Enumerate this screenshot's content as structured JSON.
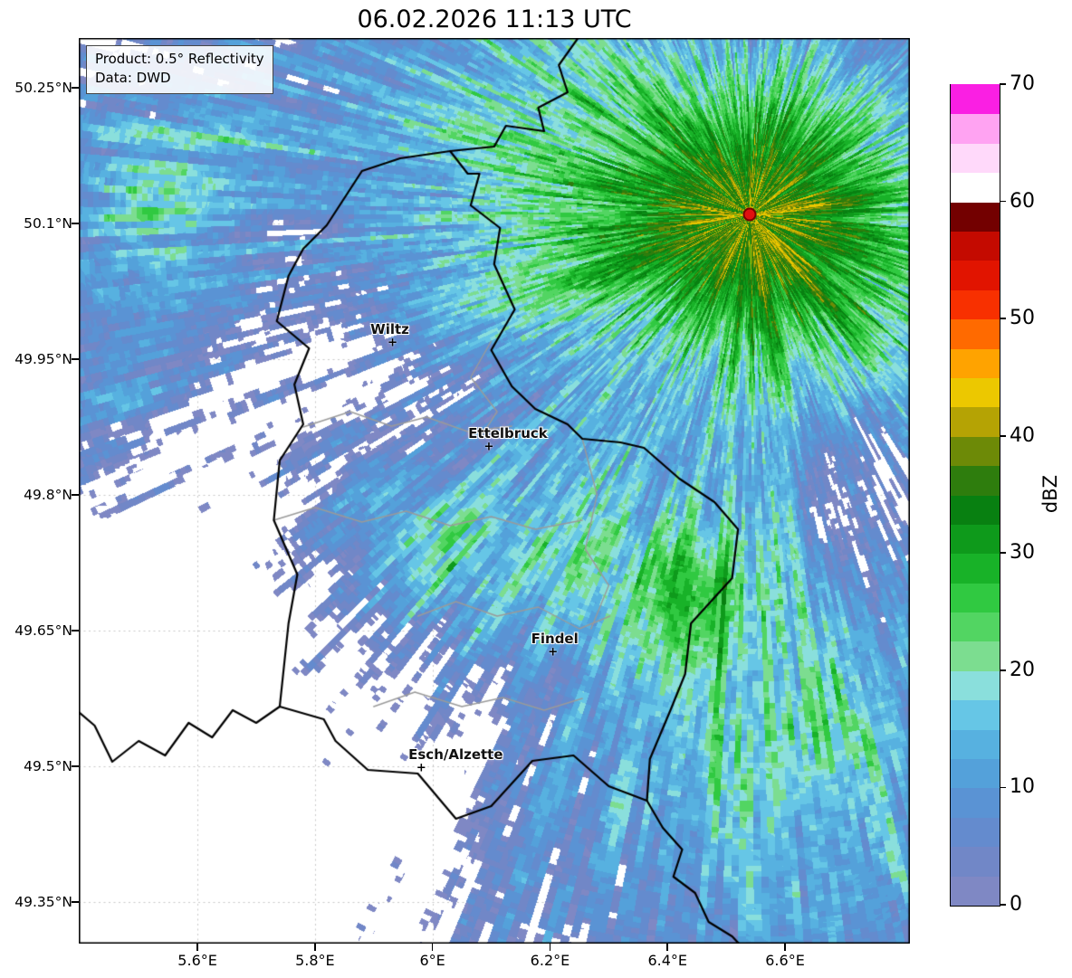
{
  "title": "06.02.2026 11:13 UTC",
  "info_box": {
    "line1": "Product: 0.5° Reflectivity",
    "line2": "Data: DWD"
  },
  "axes": {
    "y_ticks": [
      {
        "label": "50.25°N",
        "lat": 50.25
      },
      {
        "label": "50.1°N",
        "lat": 50.1
      },
      {
        "label": "49.95°N",
        "lat": 49.95
      },
      {
        "label": "49.8°N",
        "lat": 49.8
      },
      {
        "label": "49.65°N",
        "lat": 49.65
      },
      {
        "label": "49.5°N",
        "lat": 49.5
      },
      {
        "label": "49.35°N",
        "lat": 49.35
      }
    ],
    "x_ticks": [
      {
        "label": "5.6°E",
        "lon": 5.6
      },
      {
        "label": "5.8°E",
        "lon": 5.8
      },
      {
        "label": "6°E",
        "lon": 6.0
      },
      {
        "label": "6.2°E",
        "lon": 6.2
      },
      {
        "label": "6.4°E",
        "lon": 6.4
      },
      {
        "label": "6.6°E",
        "lon": 6.6
      }
    ]
  },
  "map": {
    "extent": {
      "lon_min": 5.398,
      "lon_max": 6.8126,
      "lat_min": 49.304,
      "lat_max": 50.305
    },
    "cities": [
      {
        "name": "Wiltz",
        "lon": 5.932,
        "lat": 49.968,
        "label_dx": -3
      },
      {
        "name": "Ettelbruck",
        "lon": 6.096,
        "lat": 49.853,
        "label_dx": 21
      },
      {
        "name": "Findel",
        "lon": 6.205,
        "lat": 49.626,
        "label_dx": 2
      },
      {
        "name": "Esch/Alzette",
        "lon": 5.981,
        "lat": 49.498,
        "label_dx": 38
      }
    ],
    "radar_marker": {
      "lon": 6.54,
      "lat": 50.11,
      "color": "#e01010"
    },
    "borders": {
      "country": [
        [
          [
            6.25,
            50.307
          ],
          [
            6.215,
            50.275
          ],
          [
            6.23,
            50.245
          ],
          [
            6.18,
            50.228
          ],
          [
            6.19,
            50.202
          ],
          [
            6.125,
            50.208
          ],
          [
            6.105,
            50.185
          ],
          [
            6.03,
            50.18
          ]
        ],
        [
          [
            6.03,
            50.18
          ],
          [
            6.06,
            50.155
          ],
          [
            6.08,
            50.155
          ],
          [
            6.065,
            50.12
          ],
          [
            6.115,
            50.095
          ],
          [
            6.105,
            50.055
          ],
          [
            6.14,
            50.005
          ],
          [
            6.1,
            49.96
          ],
          [
            6.135,
            49.92
          ],
          [
            6.175,
            49.895
          ],
          [
            6.23,
            49.878
          ],
          [
            6.255,
            49.862
          ],
          [
            6.32,
            49.858
          ],
          [
            6.36,
            49.852
          ],
          [
            6.42,
            49.818
          ],
          [
            6.48,
            49.792
          ],
          [
            6.52,
            49.762
          ],
          [
            6.51,
            49.708
          ],
          [
            6.44,
            49.658
          ],
          [
            6.43,
            49.602
          ],
          [
            6.405,
            49.562
          ],
          [
            6.37,
            49.508
          ],
          [
            6.365,
            49.462
          ],
          [
            6.3,
            49.478
          ],
          [
            6.24,
            49.512
          ],
          [
            6.17,
            49.506
          ],
          [
            6.1,
            49.456
          ],
          [
            6.04,
            49.442
          ],
          [
            5.975,
            49.492
          ],
          [
            5.89,
            49.496
          ],
          [
            5.835,
            49.528
          ],
          [
            5.815,
            49.552
          ],
          [
            5.74,
            49.566
          ],
          [
            5.755,
            49.658
          ],
          [
            5.77,
            49.712
          ],
          [
            5.73,
            49.772
          ],
          [
            5.74,
            49.838
          ],
          [
            5.78,
            49.878
          ],
          [
            5.765,
            49.922
          ],
          [
            5.79,
            49.962
          ],
          [
            5.735,
            49.992
          ],
          [
            5.755,
            50.042
          ],
          [
            5.78,
            50.072
          ],
          [
            5.82,
            50.098
          ],
          [
            5.88,
            50.158
          ],
          [
            5.945,
            50.172
          ],
          [
            6.03,
            50.18
          ]
        ],
        [
          [
            5.74,
            49.566
          ],
          [
            5.7,
            49.548
          ],
          [
            5.66,
            49.562
          ],
          [
            5.625,
            49.532
          ],
          [
            5.585,
            49.548
          ],
          [
            5.545,
            49.512
          ],
          [
            5.5,
            49.528
          ],
          [
            5.455,
            49.505
          ],
          [
            5.425,
            49.545
          ],
          [
            5.398,
            49.56
          ]
        ],
        [
          [
            6.365,
            49.462
          ],
          [
            6.392,
            49.432
          ],
          [
            6.425,
            49.408
          ],
          [
            6.41,
            49.378
          ],
          [
            6.447,
            49.36
          ],
          [
            6.47,
            49.328
          ],
          [
            6.51,
            49.312
          ],
          [
            6.545,
            49.288
          ],
          [
            6.575,
            49.268
          ],
          [
            6.602,
            49.252
          ]
        ]
      ],
      "regional": [
        [
          [
            5.78,
            49.875
          ],
          [
            5.86,
            49.892
          ],
          [
            5.93,
            49.876
          ],
          [
            5.99,
            49.886
          ],
          [
            6.06,
            49.87
          ],
          [
            6.135,
            49.876
          ]
        ],
        [
          [
            5.73,
            49.772
          ],
          [
            5.8,
            49.786
          ],
          [
            5.88,
            49.77
          ],
          [
            5.955,
            49.782
          ],
          [
            6.03,
            49.766
          ],
          [
            6.1,
            49.776
          ],
          [
            6.175,
            49.762
          ],
          [
            6.255,
            49.772
          ]
        ],
        [
          [
            5.975,
            49.666
          ],
          [
            6.04,
            49.682
          ],
          [
            6.11,
            49.666
          ],
          [
            6.18,
            49.676
          ],
          [
            6.25,
            49.652
          ],
          [
            6.302,
            49.666
          ]
        ],
        [
          [
            5.9,
            49.566
          ],
          [
            5.97,
            49.582
          ],
          [
            6.05,
            49.566
          ],
          [
            6.12,
            49.576
          ],
          [
            6.19,
            49.562
          ],
          [
            6.255,
            49.575
          ]
        ],
        [
          [
            6.1,
            49.97
          ],
          [
            6.065,
            49.93
          ],
          [
            6.11,
            49.892
          ],
          [
            6.08,
            49.862
          ]
        ],
        [
          [
            6.255,
            49.862
          ],
          [
            6.28,
            49.8
          ],
          [
            6.26,
            49.74
          ],
          [
            6.3,
            49.7
          ],
          [
            6.27,
            49.652
          ]
        ]
      ]
    }
  },
  "colorbar": {
    "label": "dBZ",
    "min": 0,
    "max": 70,
    "step": 2.5,
    "tick_values": [
      0,
      10,
      20,
      30,
      40,
      50,
      60,
      70
    ],
    "colors": [
      "#7f88c4",
      "#7187c7",
      "#648bce",
      "#5a93d4",
      "#54a1da",
      "#57b1e0",
      "#66c6e6",
      "#8adfdc",
      "#7cdd90",
      "#52d562",
      "#30c941",
      "#18b228",
      "#0e9a1b",
      "#088011",
      "#2e7d0d",
      "#6d8a07",
      "#b5a304",
      "#ecc800",
      "#ffa300",
      "#ff6a00",
      "#f83000",
      "#e11400",
      "#c40a00",
      "#730000",
      "#ffffff",
      "#ffd9fa",
      "#ffa3f2",
      "#fa1fe3"
    ]
  }
}
